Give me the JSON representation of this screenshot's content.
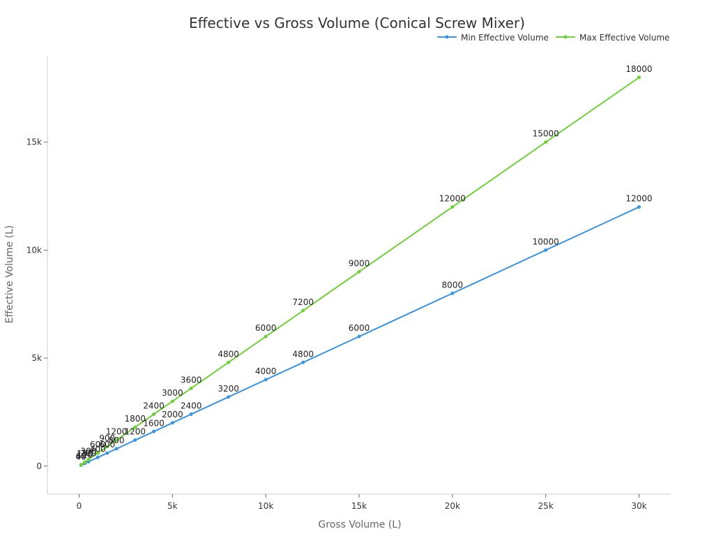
{
  "colors": {
    "min_series": "#3b94e0",
    "max_series": "#6fcf3a",
    "axis": "#cccccc"
  },
  "chart_data": {
    "type": "line",
    "title": "Effective vs Gross Volume (Conical Screw Mixer)",
    "xlabel": "Gross Volume (L)",
    "ylabel": "Effective Volume (L)",
    "xlim": [
      -1700,
      31700
    ],
    "ylim": [
      -1300,
      19000
    ],
    "x_ticks": [
      {
        "value": 0,
        "label": "0"
      },
      {
        "value": 5000,
        "label": "5k"
      },
      {
        "value": 10000,
        "label": "10k"
      },
      {
        "value": 15000,
        "label": "15k"
      },
      {
        "value": 20000,
        "label": "20k"
      },
      {
        "value": 25000,
        "label": "25k"
      },
      {
        "value": 30000,
        "label": "30k"
      }
    ],
    "y_ticks": [
      {
        "value": 0,
        "label": "0"
      },
      {
        "value": 5000,
        "label": "5k"
      },
      {
        "value": 10000,
        "label": "10k"
      },
      {
        "value": 15000,
        "label": "15k"
      }
    ],
    "grid": false,
    "legend_position": "top-right",
    "x": [
      100,
      300,
      500,
      1000,
      1500,
      2000,
      3000,
      4000,
      5000,
      6000,
      8000,
      10000,
      12000,
      15000,
      20000,
      25000,
      30000
    ],
    "series": [
      {
        "name": "Min Effective Volume",
        "color_key": "min_series",
        "values": [
          40,
          120,
          200,
          400,
          600,
          800,
          1200,
          1600,
          2000,
          2400,
          3200,
          4000,
          4800,
          6000,
          8000,
          10000,
          12000
        ]
      },
      {
        "name": "Max Effective Volume",
        "color_key": "max_series",
        "values": [
          60,
          180,
          300,
          600,
          900,
          1200,
          1800,
          2400,
          3000,
          3600,
          4800,
          6000,
          7200,
          9000,
          12000,
          15000,
          18000
        ]
      }
    ]
  }
}
